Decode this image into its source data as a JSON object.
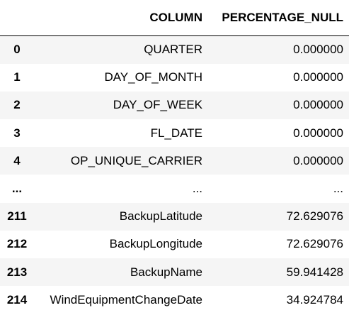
{
  "table": {
    "headers": [
      "",
      "COLUMN",
      "PERCENTAGE_NULL"
    ],
    "rows": [
      {
        "index": "0",
        "column": "QUARTER",
        "percentage_null": "0.000000"
      },
      {
        "index": "1",
        "column": "DAY_OF_MONTH",
        "percentage_null": "0.000000"
      },
      {
        "index": "2",
        "column": "DAY_OF_WEEK",
        "percentage_null": "0.000000"
      },
      {
        "index": "3",
        "column": "FL_DATE",
        "percentage_null": "0.000000"
      },
      {
        "index": "4",
        "column": "OP_UNIQUE_CARRIER",
        "percentage_null": "0.000000"
      },
      {
        "index": "...",
        "column": "...",
        "percentage_null": "..."
      },
      {
        "index": "211",
        "column": "BackupLatitude",
        "percentage_null": "72.629076"
      },
      {
        "index": "212",
        "column": "BackupLongitude",
        "percentage_null": "72.629076"
      },
      {
        "index": "213",
        "column": "BackupName",
        "percentage_null": "59.941428"
      },
      {
        "index": "214",
        "column": "WindEquipmentChangeDate",
        "percentage_null": "34.924784"
      }
    ]
  },
  "colors": {
    "stripe": "#f5f5f5",
    "background": "#ffffff",
    "text": "#000000",
    "header_rule": "#000000"
  }
}
